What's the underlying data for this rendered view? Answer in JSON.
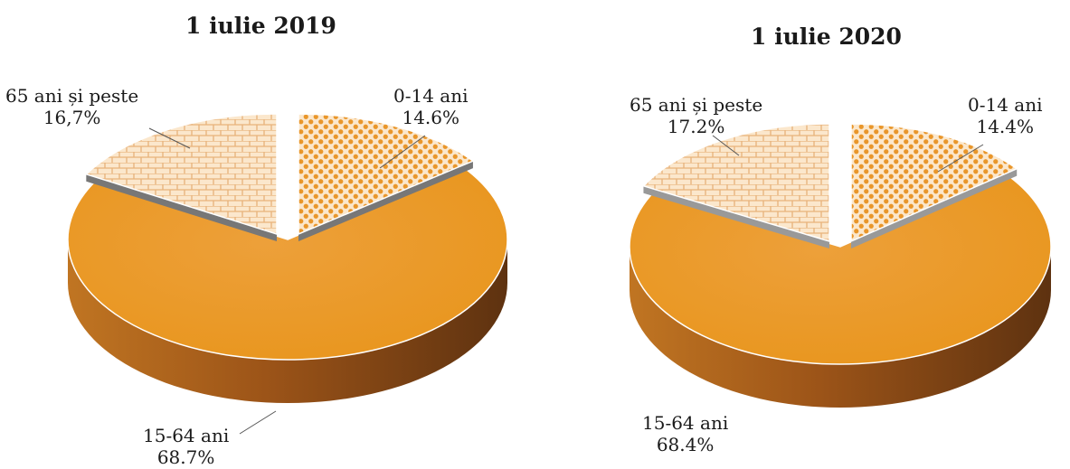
{
  "chart_data": [
    {
      "type": "pie",
      "title": "1 iulie 2019",
      "categories": [
        "0-14 ani",
        "15-64 ani",
        "65 ani și peste"
      ],
      "values": [
        14.6,
        68.7,
        16.7
      ],
      "value_labels": [
        "14.6%",
        "68.7%",
        "16,7%"
      ],
      "style": "3d-exploded",
      "colors": {
        "main": "#e8951c",
        "side": "#9c5418",
        "pattern_light": "#fbe7cc",
        "pattern_dark": "#e9962a",
        "divider": "#777777"
      }
    },
    {
      "type": "pie",
      "title": "1 iulie 2020",
      "categories": [
        "0-14 ani",
        "15-64 ani",
        "65 ani și peste"
      ],
      "values": [
        14.4,
        68.4,
        17.2
      ],
      "value_labels": [
        "14.4%",
        "68.4%",
        "17.2%"
      ],
      "style": "3d-exploded",
      "colors": {
        "main": "#e8951c",
        "side": "#9c5418",
        "pattern_light": "#fbe7cc",
        "pattern_dark": "#e9962a",
        "divider": "#999999"
      }
    }
  ]
}
